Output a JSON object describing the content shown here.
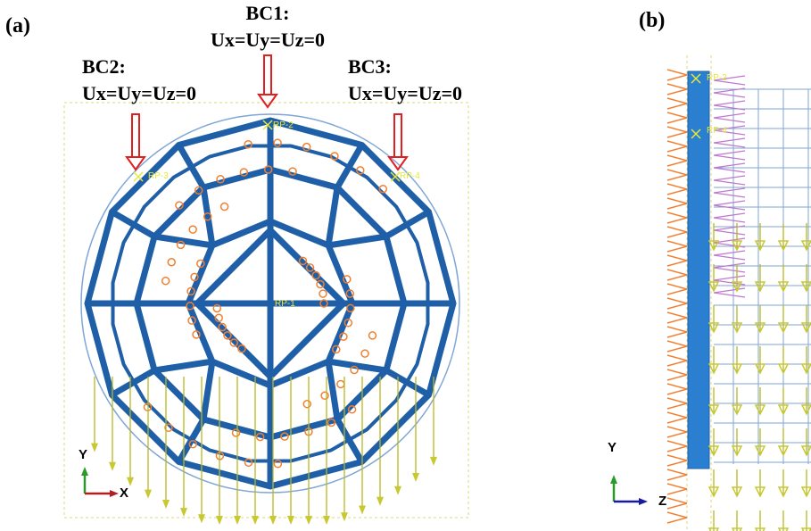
{
  "panels": [
    {
      "label": "(a)",
      "boundary_conditions": [
        {
          "name": "BC1:",
          "condition": "Ux=Uy=Uz=0"
        },
        {
          "name": "BC2:",
          "condition": "Ux=Uy=Uz=0"
        },
        {
          "name": "BC3:",
          "condition": "Ux=Uy=Uz=0"
        }
      ],
      "reference_points": [
        "RP-1",
        "RP-2",
        "RP-3",
        "RP-4"
      ],
      "axes": {
        "vertical": "Y",
        "horizontal": "X"
      }
    },
    {
      "label": "(b)",
      "reference_points": [
        "RP-2",
        "RP-4"
      ],
      "axes": {
        "vertical": "Y",
        "horizontal": "Z"
      }
    }
  ]
}
